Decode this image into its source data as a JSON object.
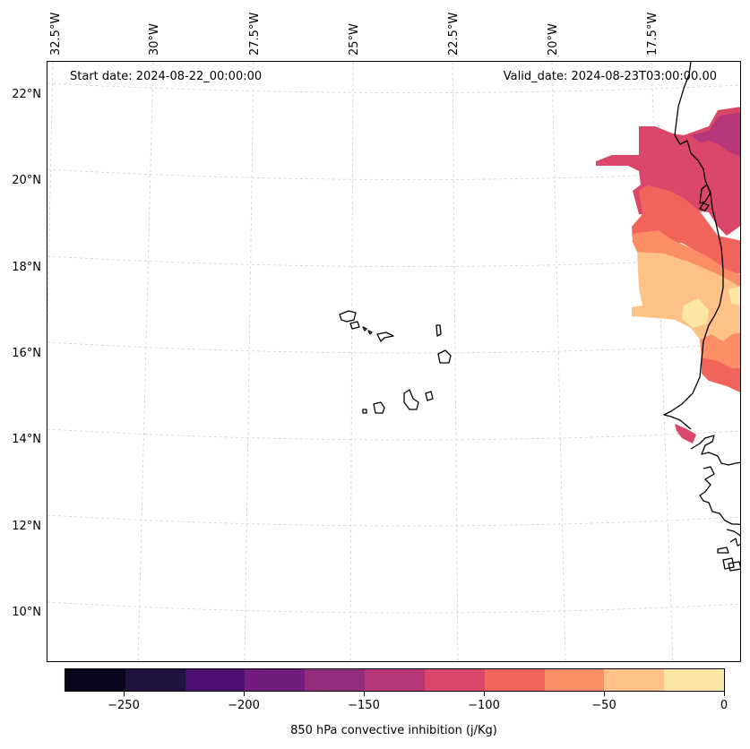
{
  "map": {
    "start_label": "Start date: 2024-08-22_00:00:00",
    "valid_label": "Valid_date: 2024-08-23T03:00:00.00",
    "lon_labels": [
      "32.5°W",
      "30°W",
      "27.5°W",
      "25°W",
      "22.5°W",
      "20°W",
      "17.5°W"
    ],
    "lat_labels": [
      "22°N",
      "20°N",
      "18°N",
      "16°N",
      "14°N",
      "12°N",
      "10°N"
    ],
    "variable": "850 hPa convective inhibition (j/Kg)"
  },
  "colorbar": {
    "ticks": [
      "−250",
      "−200",
      "−150",
      "−100",
      "−50",
      "0"
    ],
    "colors": [
      "#06051b",
      "#21113f",
      "#4f0f74",
      "#721c80",
      "#932c7d",
      "#b63779",
      "#db4769",
      "#f2635c",
      "#fc8e63",
      "#fec186",
      "#fce8a4"
    ]
  },
  "colors": {
    "gridline": "#cfcfcf",
    "coast": "#000000"
  }
}
